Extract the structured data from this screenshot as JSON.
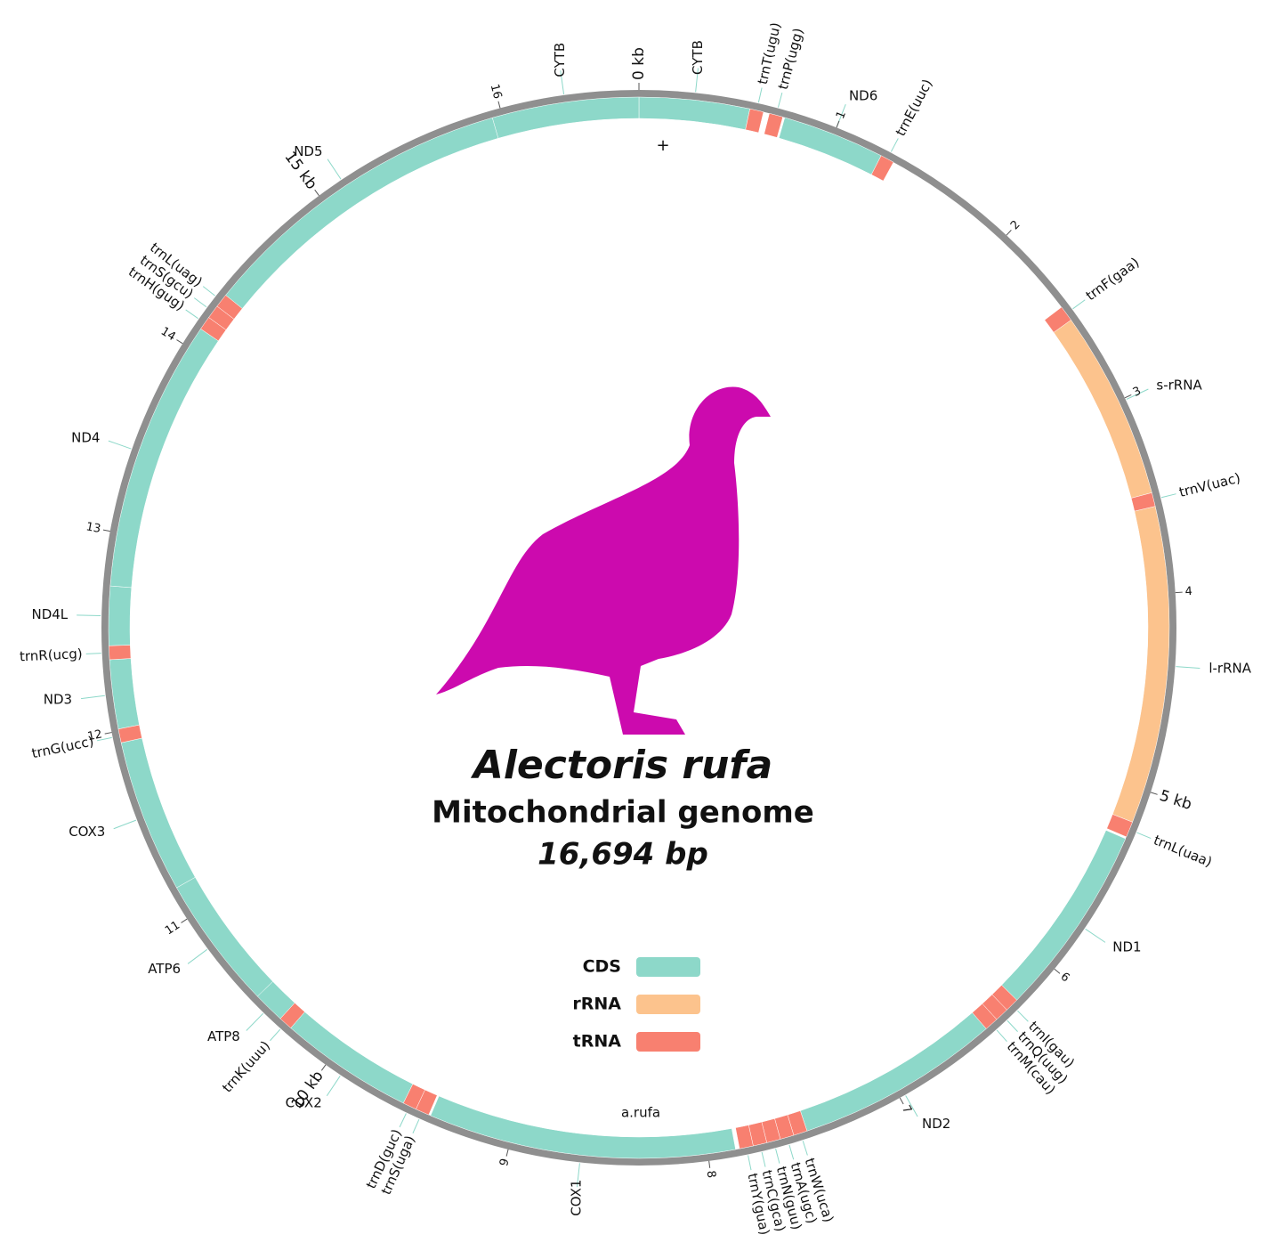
{
  "chart_data": {
    "type": "circular",
    "title": "Alectoris rufa",
    "subtitle": "Mitochondrial genome",
    "length_label": "16,694 bp",
    "annotations": [
      "+",
      "a.rufa"
    ],
    "xlim": [
      0,
      16.694
    ],
    "xticks": [
      {
        "value": 0,
        "label": "0 kb"
      },
      1,
      2,
      3,
      4,
      {
        "value": 5,
        "label": "5 kb"
      },
      6,
      7,
      8,
      9,
      {
        "value": 10,
        "label": "10 kb"
      },
      11,
      12,
      13,
      14,
      {
        "value": 15,
        "label": "15 kb"
      },
      16
    ],
    "series": [
      {
        "name": "CDS",
        "color": "#8dd8c9",
        "features": [
          {
            "label": "CYTB",
            "start": 0,
            "end": 0.56
          },
          {
            "label": "ND6",
            "start": 0.74,
            "end": 1.26
          },
          {
            "label": "ND1",
            "start": 5.26,
            "end": 6.24
          },
          {
            "label": "ND2",
            "start": 6.45,
            "end": 7.49
          },
          {
            "label": "COX1",
            "start": 7.86,
            "end": 9.42
          },
          {
            "label": "COX2",
            "start": 9.57,
            "end": 10.25
          },
          {
            "label": "ATP8",
            "start": 10.32,
            "end": 10.48
          },
          {
            "label": "ATP6",
            "start": 10.48,
            "end": 11.16
          },
          {
            "label": "COX3",
            "start": 11.16,
            "end": 11.94
          },
          {
            "label": "ND3",
            "start": 12.01,
            "end": 12.36
          },
          {
            "label": "ND4L",
            "start": 12.43,
            "end": 12.73
          },
          {
            "label": "ND4",
            "start": 12.73,
            "end": 14.11
          },
          {
            "label": "ND5",
            "start": 14.32,
            "end": 15.95
          },
          {
            "label": "CYTB",
            "start": 15.95,
            "end": 16.694
          }
        ]
      },
      {
        "name": "rRNA",
        "color": "#fcc38d",
        "features": [
          {
            "label": "s-rRNA",
            "start": 2.53,
            "end": 3.49
          },
          {
            "label": "l-rRNA",
            "start": 3.56,
            "end": 5.17
          }
        ]
      },
      {
        "name": "tRNA",
        "color": "#f88070",
        "features": [
          {
            "label": "trnT(ugu)",
            "start": 0.56,
            "end": 0.63
          },
          {
            "label": "trnP(ugg)",
            "start": 0.66,
            "end": 0.73
          },
          {
            "label": "trnE(uuc)",
            "start": 1.26,
            "end": 1.33
          },
          {
            "label": "trnF(gaa)",
            "start": 2.45,
            "end": 2.53
          },
          {
            "label": "trnV(uac)",
            "start": 3.49,
            "end": 3.56
          },
          {
            "label": "trnL(uaa)",
            "start": 5.17,
            "end": 5.25
          },
          {
            "label": "trnI(gau)",
            "start": 6.24,
            "end": 6.31
          },
          {
            "label": "trnQ(uug)",
            "start": 6.31,
            "end": 6.38
          },
          {
            "label": "trnM(cau)",
            "start": 6.38,
            "end": 6.45
          },
          {
            "label": "trnW(uca)",
            "start": 7.49,
            "end": 7.56
          },
          {
            "label": "trnA(ugc)",
            "start": 7.56,
            "end": 7.63
          },
          {
            "label": "trnN(guu)",
            "start": 7.63,
            "end": 7.7
          },
          {
            "label": "trnC(gca)",
            "start": 7.7,
            "end": 7.77
          },
          {
            "label": "trnY(gua)",
            "start": 7.77,
            "end": 7.84
          },
          {
            "label": "trnS(uga)",
            "start": 9.43,
            "end": 9.5
          },
          {
            "label": "trnD(guc)",
            "start": 9.5,
            "end": 9.57
          },
          {
            "label": "trnK(uuu)",
            "start": 10.25,
            "end": 10.32
          },
          {
            "label": "trnG(ucc)",
            "start": 11.94,
            "end": 12.01
          },
          {
            "label": "trnR(ucg)",
            "start": 12.36,
            "end": 12.43
          },
          {
            "label": "trnH(gug)",
            "start": 14.11,
            "end": 14.18
          },
          {
            "label": "trnS(gcu)",
            "start": 14.18,
            "end": 14.25
          },
          {
            "label": "trnL(uag)",
            "start": 14.25,
            "end": 14.32
          }
        ]
      }
    ]
  }
}
